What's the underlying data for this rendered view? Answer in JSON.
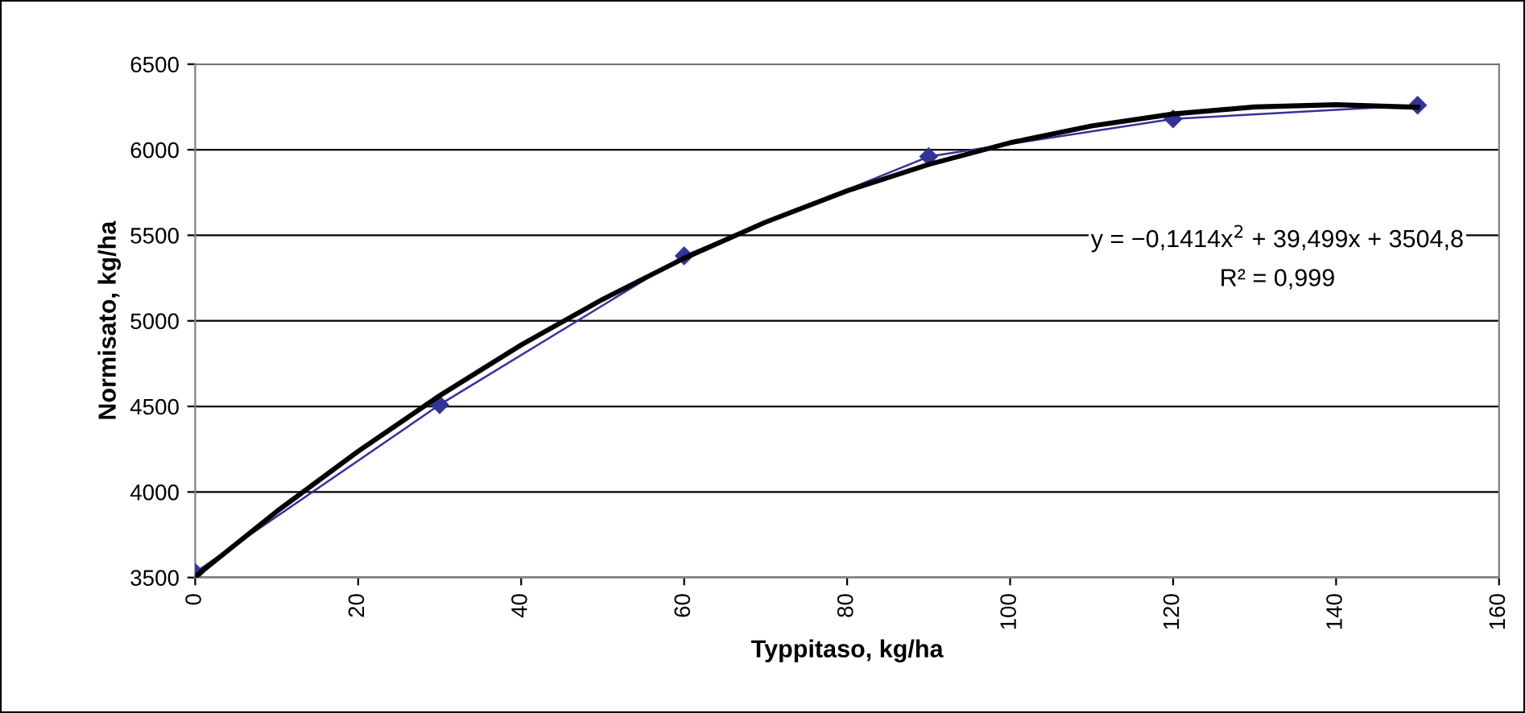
{
  "chart_data": {
    "type": "line",
    "xlabel": "Typpitaso, kg/ha",
    "ylabel": "Normisato, kg/ha",
    "x": [
      0,
      30,
      60,
      90,
      120,
      150
    ],
    "series": [
      {
        "color": "#333399",
        "marker": "diamond",
        "values": [
          3530,
          4510,
          5380,
          5960,
          6180,
          6260
        ]
      },
      {
        "color": "#000000",
        "marker": "none",
        "x": [
          0,
          10,
          20,
          30,
          40,
          50,
          60,
          70,
          80,
          90,
          100,
          110,
          120,
          130,
          140,
          150
        ],
        "values": [
          3505,
          3886,
          4238,
          4563,
          4859,
          5126,
          5366,
          5577,
          5760,
          5914,
          6041,
          6139,
          6209,
          6250,
          6263,
          6248
        ]
      }
    ],
    "xlim": [
      0,
      160
    ],
    "ylim": [
      3500,
      6500
    ],
    "xticks": [
      0,
      20,
      40,
      60,
      80,
      100,
      120,
      140,
      160
    ],
    "yticks": [
      3500,
      4000,
      4500,
      5000,
      5500,
      6000,
      6500
    ],
    "grid": "y",
    "annotations": [
      "y = −0,1414x$^{2}$ + 39,499x + 3504,8",
      "R² = 0,999"
    ]
  }
}
